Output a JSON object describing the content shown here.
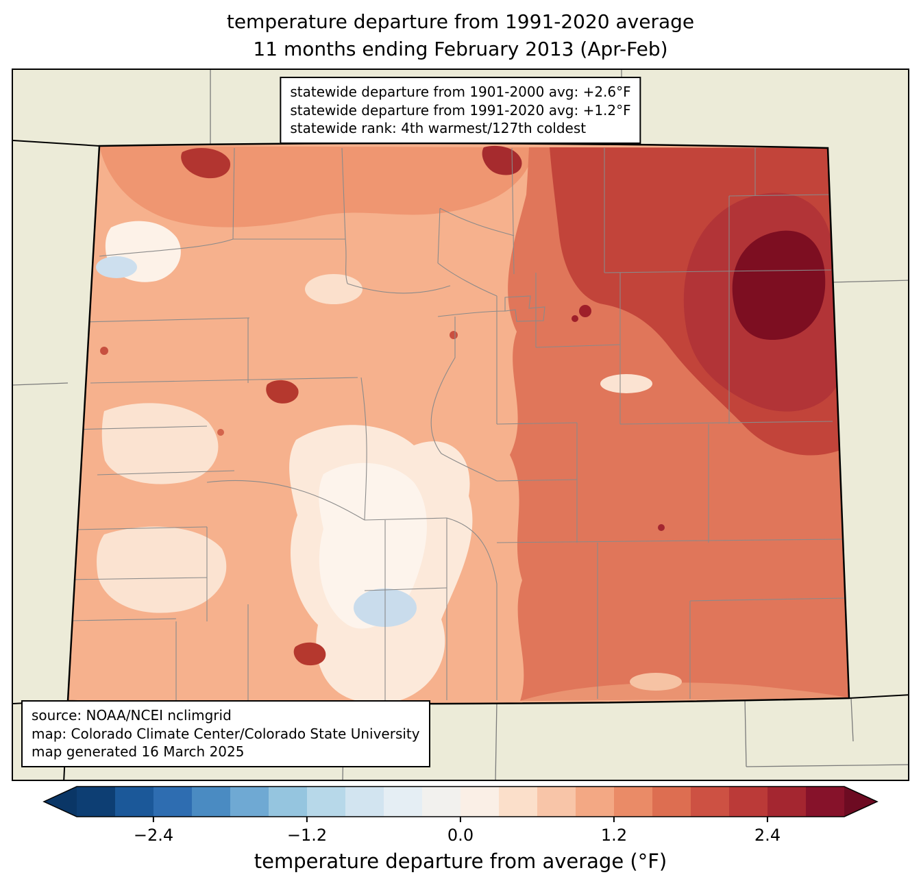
{
  "title": {
    "line1": "temperature departure from 1991-2020 average",
    "line2": "11 months ending February 2013 (Apr-Feb)"
  },
  "stats_box": {
    "lines": [
      "statewide departure from 1901-2000 avg: +2.6°F",
      "statewide departure from 1991-2020 avg: +1.2°F",
      "statewide rank: 4th warmest/127th coldest"
    ]
  },
  "source_box": {
    "lines": [
      "source: NOAA/NCEI nclimgrid",
      "map: Colorado Climate Center/Colorado State University",
      "map generated 16 March 2025"
    ]
  },
  "colorbar": {
    "label": "temperature departure from average (°F)",
    "min": -3.0,
    "max": 3.0,
    "step": 0.3,
    "under_color": "#0a3666",
    "over_color": "#6d0b22",
    "segment_colors": [
      "#0d3e73",
      "#1b5899",
      "#2e6db1",
      "#4a8bc2",
      "#6fa9d3",
      "#95c5df",
      "#b7d8e9",
      "#d2e4f0",
      "#e5eef4",
      "#f2f1ee",
      "#faefe6",
      "#fbdfca",
      "#f8c5a8",
      "#f3a884",
      "#ea8b67",
      "#dd6e51",
      "#cd5143",
      "#bb3a38",
      "#a42630",
      "#86122a"
    ],
    "ticks": [
      {
        "value": -2.4,
        "label": "−2.4"
      },
      {
        "value": -1.2,
        "label": "−1.2"
      },
      {
        "value": 0.0,
        "label": "0.0"
      },
      {
        "value": 1.2,
        "label": "1.2"
      },
      {
        "value": 2.4,
        "label": "2.4"
      }
    ]
  },
  "map": {
    "region": "Colorado",
    "background_color": "#ecebd8",
    "county_line_color": "#8a8a8a",
    "neighbor_line_color": "#7a7a7a",
    "state_border_color": "#000000",
    "fills": {
      "base_west": "#f6b18d",
      "pale": "#fce9da",
      "palest": "#fdf4ec",
      "light_blue": "#cddfee",
      "top_band": "#ef9671",
      "east_medium": "#e0765a",
      "northeast_red": "#c2443a",
      "northeast_dark": "#b23437",
      "maximum_maroon": "#7d0e21",
      "hot_spot": "#b23530"
    }
  }
}
